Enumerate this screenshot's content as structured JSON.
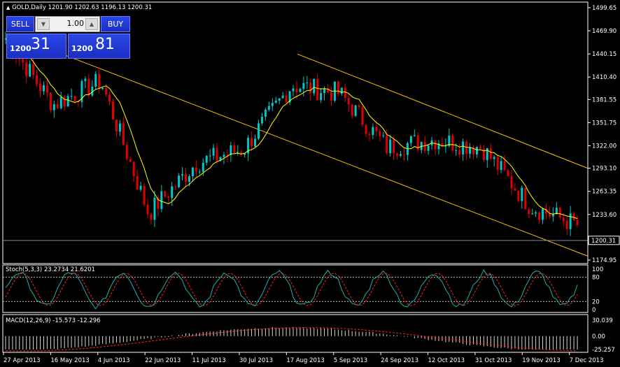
{
  "symbol_header": "GOLD,Daily  1201.90 1202.63 1196.13 1200.31",
  "trade_panel": {
    "sell_label": "SELL",
    "buy_label": "BUY",
    "lot_value": "1.00",
    "bid_prefix": "1200",
    "bid_big": "31",
    "ask_prefix": "1200",
    "ask_big": "81"
  },
  "price_axis": [
    "1499.65",
    "1469.90",
    "1440.15",
    "1410.40",
    "1381.55",
    "1351.75",
    "1322.00",
    "1293.10",
    "1263.35",
    "1233.60",
    "1174.95"
  ],
  "current_price": "1200.31",
  "stoch": {
    "title": "Stoch(5,3,3) 23.2734 21.6201",
    "levels": [
      "100",
      "80",
      "20",
      "0"
    ]
  },
  "macd": {
    "title": "MACD(12,26,9) -15.573 -12.296",
    "levels": [
      "30.039",
      "0.00",
      "-25.257"
    ]
  },
  "date_axis": [
    "27 Apr 2013",
    "16 May 2013",
    "4 Jun 2013",
    "22 Jun 2013",
    "11 Jul 2013",
    "30 Jul 2013",
    "17 Aug 2013",
    "5 Sep 2013",
    "24 Sep 2013",
    "12 Oct 2013",
    "31 Oct 2013",
    "19 Nov 2013",
    "7 Dec 2013"
  ],
  "colors": {
    "bull": "#00c8c8",
    "bear": "#e00000",
    "ma": "#ffff00",
    "channel": "#ffc000",
    "signal": "#ff2020",
    "stoch_main": "#20b0b0",
    "axis": "#ffffff"
  },
  "chart_data": {
    "type": "candlestick",
    "symbol": "GOLD",
    "timeframe": "Daily",
    "ohlc_last": {
      "open": 1201.9,
      "high": 1202.63,
      "low": 1196.13,
      "close": 1200.31
    },
    "x": [
      "27 Apr 2013",
      "16 May 2013",
      "4 Jun 2013",
      "22 Jun 2013",
      "11 Jul 2013",
      "30 Jul 2013",
      "17 Aug 2013",
      "5 Sep 2013",
      "24 Sep 2013",
      "12 Oct 2013",
      "31 Oct 2013",
      "19 Nov 2013",
      "7 Dec 2013"
    ],
    "close": [
      1460,
      1375,
      1405,
      1235,
      1300,
      1318,
      1400,
      1390,
      1320,
      1330,
      1320,
      1245,
      1220
    ],
    "ylim": [
      1174.95,
      1499.65
    ],
    "indicators": {
      "stochastic": {
        "params": "5,3,3",
        "main": 23.2734,
        "signal": 21.6201,
        "levels": [
          80,
          20
        ]
      },
      "macd": {
        "params": "12,26,9",
        "main": -15.573,
        "signal": -12.296,
        "ylim": [
          -25.257,
          30.039
        ]
      }
    }
  }
}
